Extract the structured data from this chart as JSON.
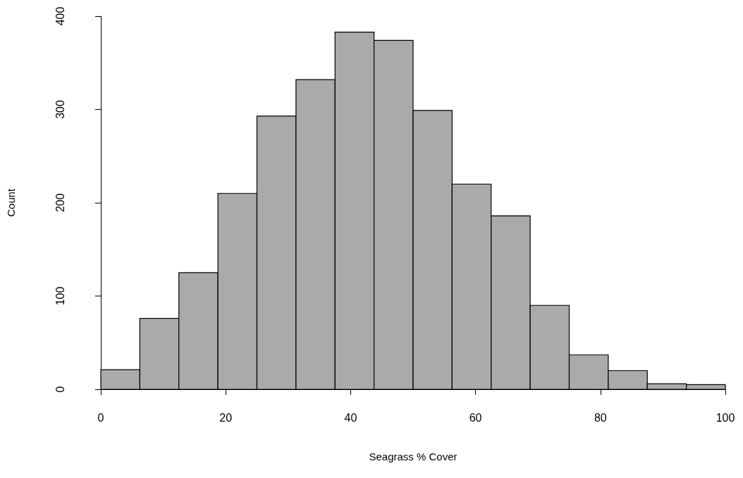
{
  "chart_data": {
    "type": "histogram",
    "xlabel": "Seagrass % Cover",
    "ylabel": "Count",
    "bins": [
      0,
      6.25,
      12.5,
      18.75,
      25,
      31.25,
      37.5,
      43.75,
      50,
      56.25,
      62.5,
      68.75,
      75,
      81.25,
      87.5,
      93.75,
      100
    ],
    "values": [
      21,
      76,
      125,
      210,
      293,
      332,
      383,
      374,
      299,
      220,
      186,
      90,
      37,
      20,
      6,
      5
    ],
    "color": "#aaaaaa",
    "xlim": [
      0,
      100
    ],
    "xticks": [
      0,
      20,
      40,
      60,
      80,
      100
    ],
    "ylim": [
      0,
      400
    ],
    "yticks": [
      0,
      100,
      200,
      300,
      400
    ],
    "grid": false
  }
}
